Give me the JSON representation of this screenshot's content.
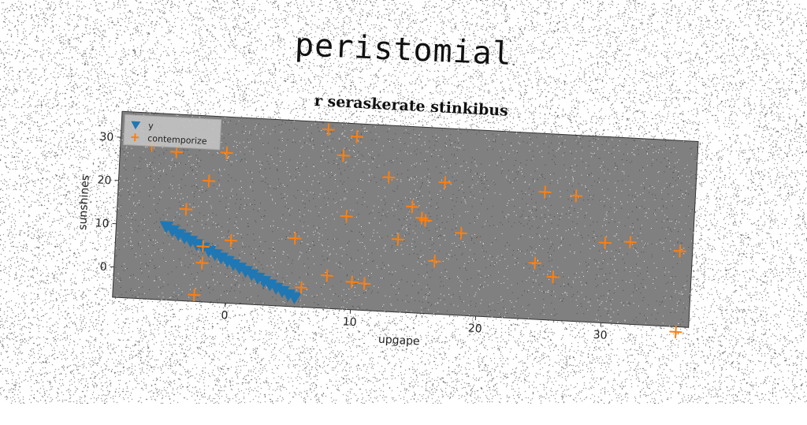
{
  "title": "peristomial",
  "chart_data": {
    "type": "scatter",
    "subtitle": "r seraskerate stinkibus",
    "xlabel": "upgape",
    "ylabel": "sunshines",
    "xlim": [
      -9,
      37
    ],
    "ylim": [
      -7,
      36
    ],
    "xticks": [
      0,
      10,
      20,
      30
    ],
    "yticks": [
      0,
      10,
      20,
      30
    ],
    "grid": false,
    "legend_position": "top-left",
    "background_color": "#808080",
    "series": [
      {
        "name": "y",
        "marker": "triangle-down",
        "color": "#1f77b4",
        "x": [
          -5.0,
          -4.5,
          -4.0,
          -3.5,
          -3.0,
          -2.5,
          -2.0,
          -1.5,
          -1.0,
          -0.5,
          0.0,
          0.5,
          1.0,
          1.5,
          2.0,
          2.5,
          3.0,
          3.5,
          4.0,
          4.5,
          5.0,
          5.5
        ],
        "y": [
          10.0,
          9.2,
          8.4,
          7.7,
          7.0,
          6.3,
          5.6,
          4.9,
          4.2,
          3.5,
          2.8,
          2.1,
          1.4,
          0.7,
          0.0,
          -0.7,
          -1.4,
          -2.1,
          -2.8,
          -3.5,
          -4.2,
          -4.8
        ]
      },
      {
        "name": "contemporize",
        "marker": "plus",
        "color": "#ff7f0e",
        "x": [
          -6.5,
          -4.5,
          -3.5,
          -2.5,
          -2.0,
          -2.0,
          -1.8,
          -0.5,
          0.2,
          5.3,
          6.0,
          7.5,
          8.0,
          8.8,
          9.3,
          9.8,
          10.0,
          11.0,
          12.5,
          13.5,
          14.5,
          15.3,
          15.6,
          16.5,
          17.0,
          18.5,
          24.5,
          25.0,
          26.0,
          27.5,
          30.0,
          32.0,
          36.0,
          36.0
        ],
        "y": [
          28.5,
          27.3,
          14.2,
          -5.5,
          2.0,
          5.8,
          21.0,
          27.7,
          7.5,
          8.8,
          -2.5,
          34.3,
          0.6,
          28.5,
          14.5,
          33.0,
          -0.6,
          -0.8,
          24.0,
          9.8,
          17.5,
          15.0,
          14.5,
          5.2,
          23.5,
          12.0,
          6.0,
          22.5,
          3.0,
          22.0,
          11.5,
          12.0,
          -8.2,
          10.5
        ]
      }
    ]
  }
}
